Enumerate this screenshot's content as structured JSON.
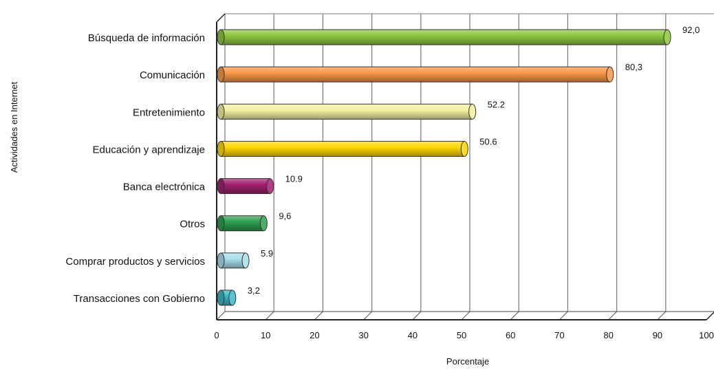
{
  "chart_data": {
    "type": "bar",
    "orientation": "horizontal",
    "categories": [
      "Búsqueda de información",
      "Comunicación",
      "Entretenimiento",
      "Educación y aprendizaje",
      "Banca electrónica",
      "Otros",
      "Comprar productos y servicios",
      "Transacciones con Gobierno"
    ],
    "values": [
      92.0,
      80.3,
      52.2,
      50.6,
      10.9,
      9.6,
      5.9,
      3.2
    ],
    "value_labels": [
      "92,0",
      "80,3",
      "52.2",
      "50.6",
      "10.9",
      "9,6",
      "5.9",
      "3,2"
    ],
    "colors": [
      "#8dc63f",
      "#f79646",
      "#f3f0a0",
      "#ffd700",
      "#a0206e",
      "#2e9e4f",
      "#a8dde8",
      "#3ab7c8"
    ],
    "xlabel": "Porcentaje",
    "ylabel": "Actividades en Internet",
    "xlim": [
      0,
      100
    ],
    "xticks": [
      "0",
      "10",
      "20",
      "30",
      "40",
      "50",
      "60",
      "70",
      "80",
      "90",
      "100"
    ],
    "grid": true,
    "legend": "none",
    "style": "3d-cylinder"
  }
}
